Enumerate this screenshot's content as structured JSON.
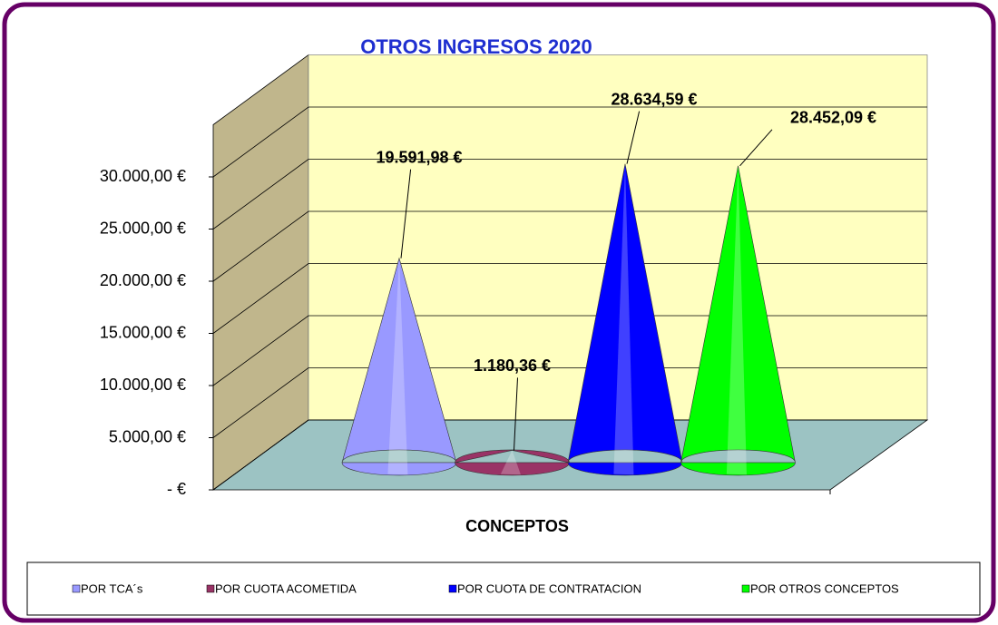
{
  "chart_data": {
    "type": "cone",
    "title": "OTROS INGRESOS 2020",
    "x_label": "CONCEPTOS",
    "series": [
      {
        "name": "POR TCA´s",
        "color": "#9999ff",
        "values": [
          19591.98
        ],
        "value_labels": [
          "19.591,98 €"
        ]
      },
      {
        "name": "POR CUOTA ACOMETIDA",
        "color": "#993366",
        "values": [
          1180.36
        ],
        "value_labels": [
          "1.180,36 €"
        ]
      },
      {
        "name": "POR CUOTA DE CONTRATACION",
        "color": "#0000ff",
        "values": [
          28634.59
        ],
        "value_labels": [
          "28.634,59 €"
        ]
      },
      {
        "name": "POR OTROS CONCEPTOS",
        "color": "#00ff00",
        "values": [
          28452.09
        ],
        "value_labels": [
          "28.452,09 €"
        ]
      }
    ],
    "ylim": [
      0,
      35000
    ],
    "yticks": [
      {
        "value": 0,
        "label": "-  €"
      },
      {
        "value": 5000,
        "label": "5.000,00 €"
      },
      {
        "value": 10000,
        "label": "10.000,00 €"
      },
      {
        "value": 15000,
        "label": "15.000,00 €"
      },
      {
        "value": 20000,
        "label": "20.000,00 €"
      },
      {
        "value": 25000,
        "label": "25.000,00 €"
      },
      {
        "value": 30000,
        "label": "30.000,00 €"
      }
    ],
    "grid": true,
    "legend": "bottom"
  }
}
